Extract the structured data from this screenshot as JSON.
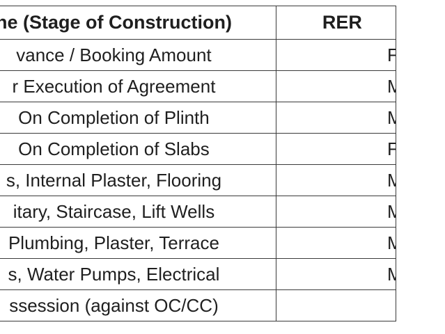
{
  "table": {
    "headers": [
      "ne (Stage of Construction)",
      "RER"
    ],
    "rows": [
      {
        "stage": "vance / Booking Amount",
        "value": "F"
      },
      {
        "stage": "r Execution of Agreement",
        "value": "M"
      },
      {
        "stage": "On Completion of Plinth",
        "value": "M"
      },
      {
        "stage": "On Completion of Slabs",
        "value": "F"
      },
      {
        "stage": "s, Internal Plaster, Flooring",
        "value": "M"
      },
      {
        "stage": "itary, Staircase, Lift Wells",
        "value": "M"
      },
      {
        "stage": "Plumbing, Plaster, Terrace",
        "value": "M"
      },
      {
        "stage": "s, Water Pumps, Electrical",
        "value": "M"
      },
      {
        "stage": "ssession (against OC/CC)",
        "value": ""
      }
    ]
  }
}
